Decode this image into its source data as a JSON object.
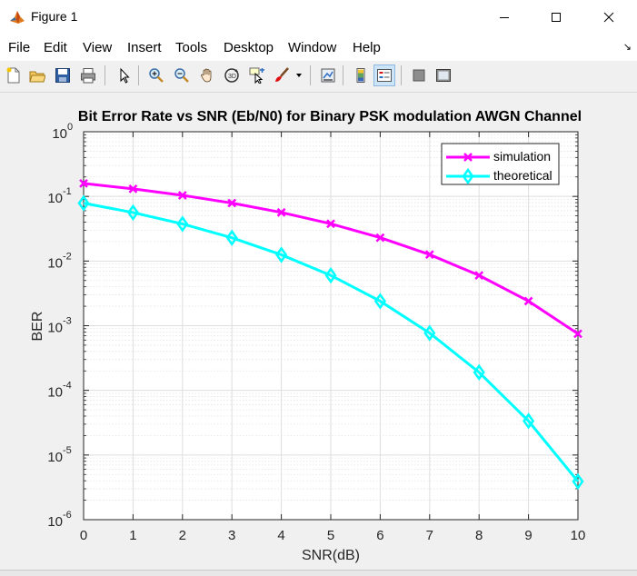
{
  "window": {
    "title": "Figure 1"
  },
  "menu": [
    "File",
    "Edit",
    "View",
    "Insert",
    "Tools",
    "Desktop",
    "Window",
    "Help"
  ],
  "toolbar": [
    "new-figure",
    "open-file",
    "save",
    "print",
    "edit-plot",
    "zoom-in",
    "zoom-out",
    "pan",
    "rotate-3d",
    "data-cursor",
    "brush",
    "link-plot",
    "colorbar",
    "legend",
    "hide-plot-tools",
    "show-plot-tools"
  ],
  "colors": {
    "simulation": "#ff00ff",
    "theoretical": "#00ffff"
  },
  "chart_data": {
    "type": "line",
    "title": "Bit Error Rate vs SNR (Eb/N0) for Binary PSK modulation AWGN Channel",
    "xlabel": "SNR(dB)",
    "ylabel": "BER",
    "yscale": "log",
    "grid": true,
    "minor_grid": true,
    "legend_position": "top-right",
    "xlim": [
      0,
      10
    ],
    "ylim": [
      1e-06,
      1
    ],
    "x": [
      0,
      1,
      2,
      3,
      4,
      5,
      6,
      7,
      8,
      9,
      10
    ],
    "xticks": [
      "0",
      "1",
      "2",
      "3",
      "4",
      "5",
      "6",
      "7",
      "8",
      "9",
      "10"
    ],
    "yticks": [
      {
        "base": "10",
        "exp": "0",
        "value": 1
      },
      {
        "base": "10",
        "exp": "-1",
        "value": 0.1
      },
      {
        "base": "10",
        "exp": "-2",
        "value": 0.01
      },
      {
        "base": "10",
        "exp": "-3",
        "value": 0.001
      },
      {
        "base": "10",
        "exp": "-4",
        "value": 0.0001
      },
      {
        "base": "10",
        "exp": "-5",
        "value": 1e-05
      },
      {
        "base": "10",
        "exp": "-6",
        "value": 1e-06
      }
    ],
    "series": [
      {
        "name": "simulation",
        "marker": "x",
        "color": "#ff00ff",
        "values": [
          0.1587,
          0.1309,
          0.104,
          0.0789,
          0.0565,
          0.0377,
          0.023,
          0.0126,
          0.006,
          0.0024,
          0.00075
        ]
      },
      {
        "name": "theoretical",
        "marker": "diamond",
        "color": "#00ffff",
        "values": [
          0.0786,
          0.0563,
          0.0375,
          0.0229,
          0.0125,
          0.006,
          0.0024,
          0.00077,
          0.00019,
          3.36e-05,
          3.9e-06
        ]
      }
    ]
  }
}
